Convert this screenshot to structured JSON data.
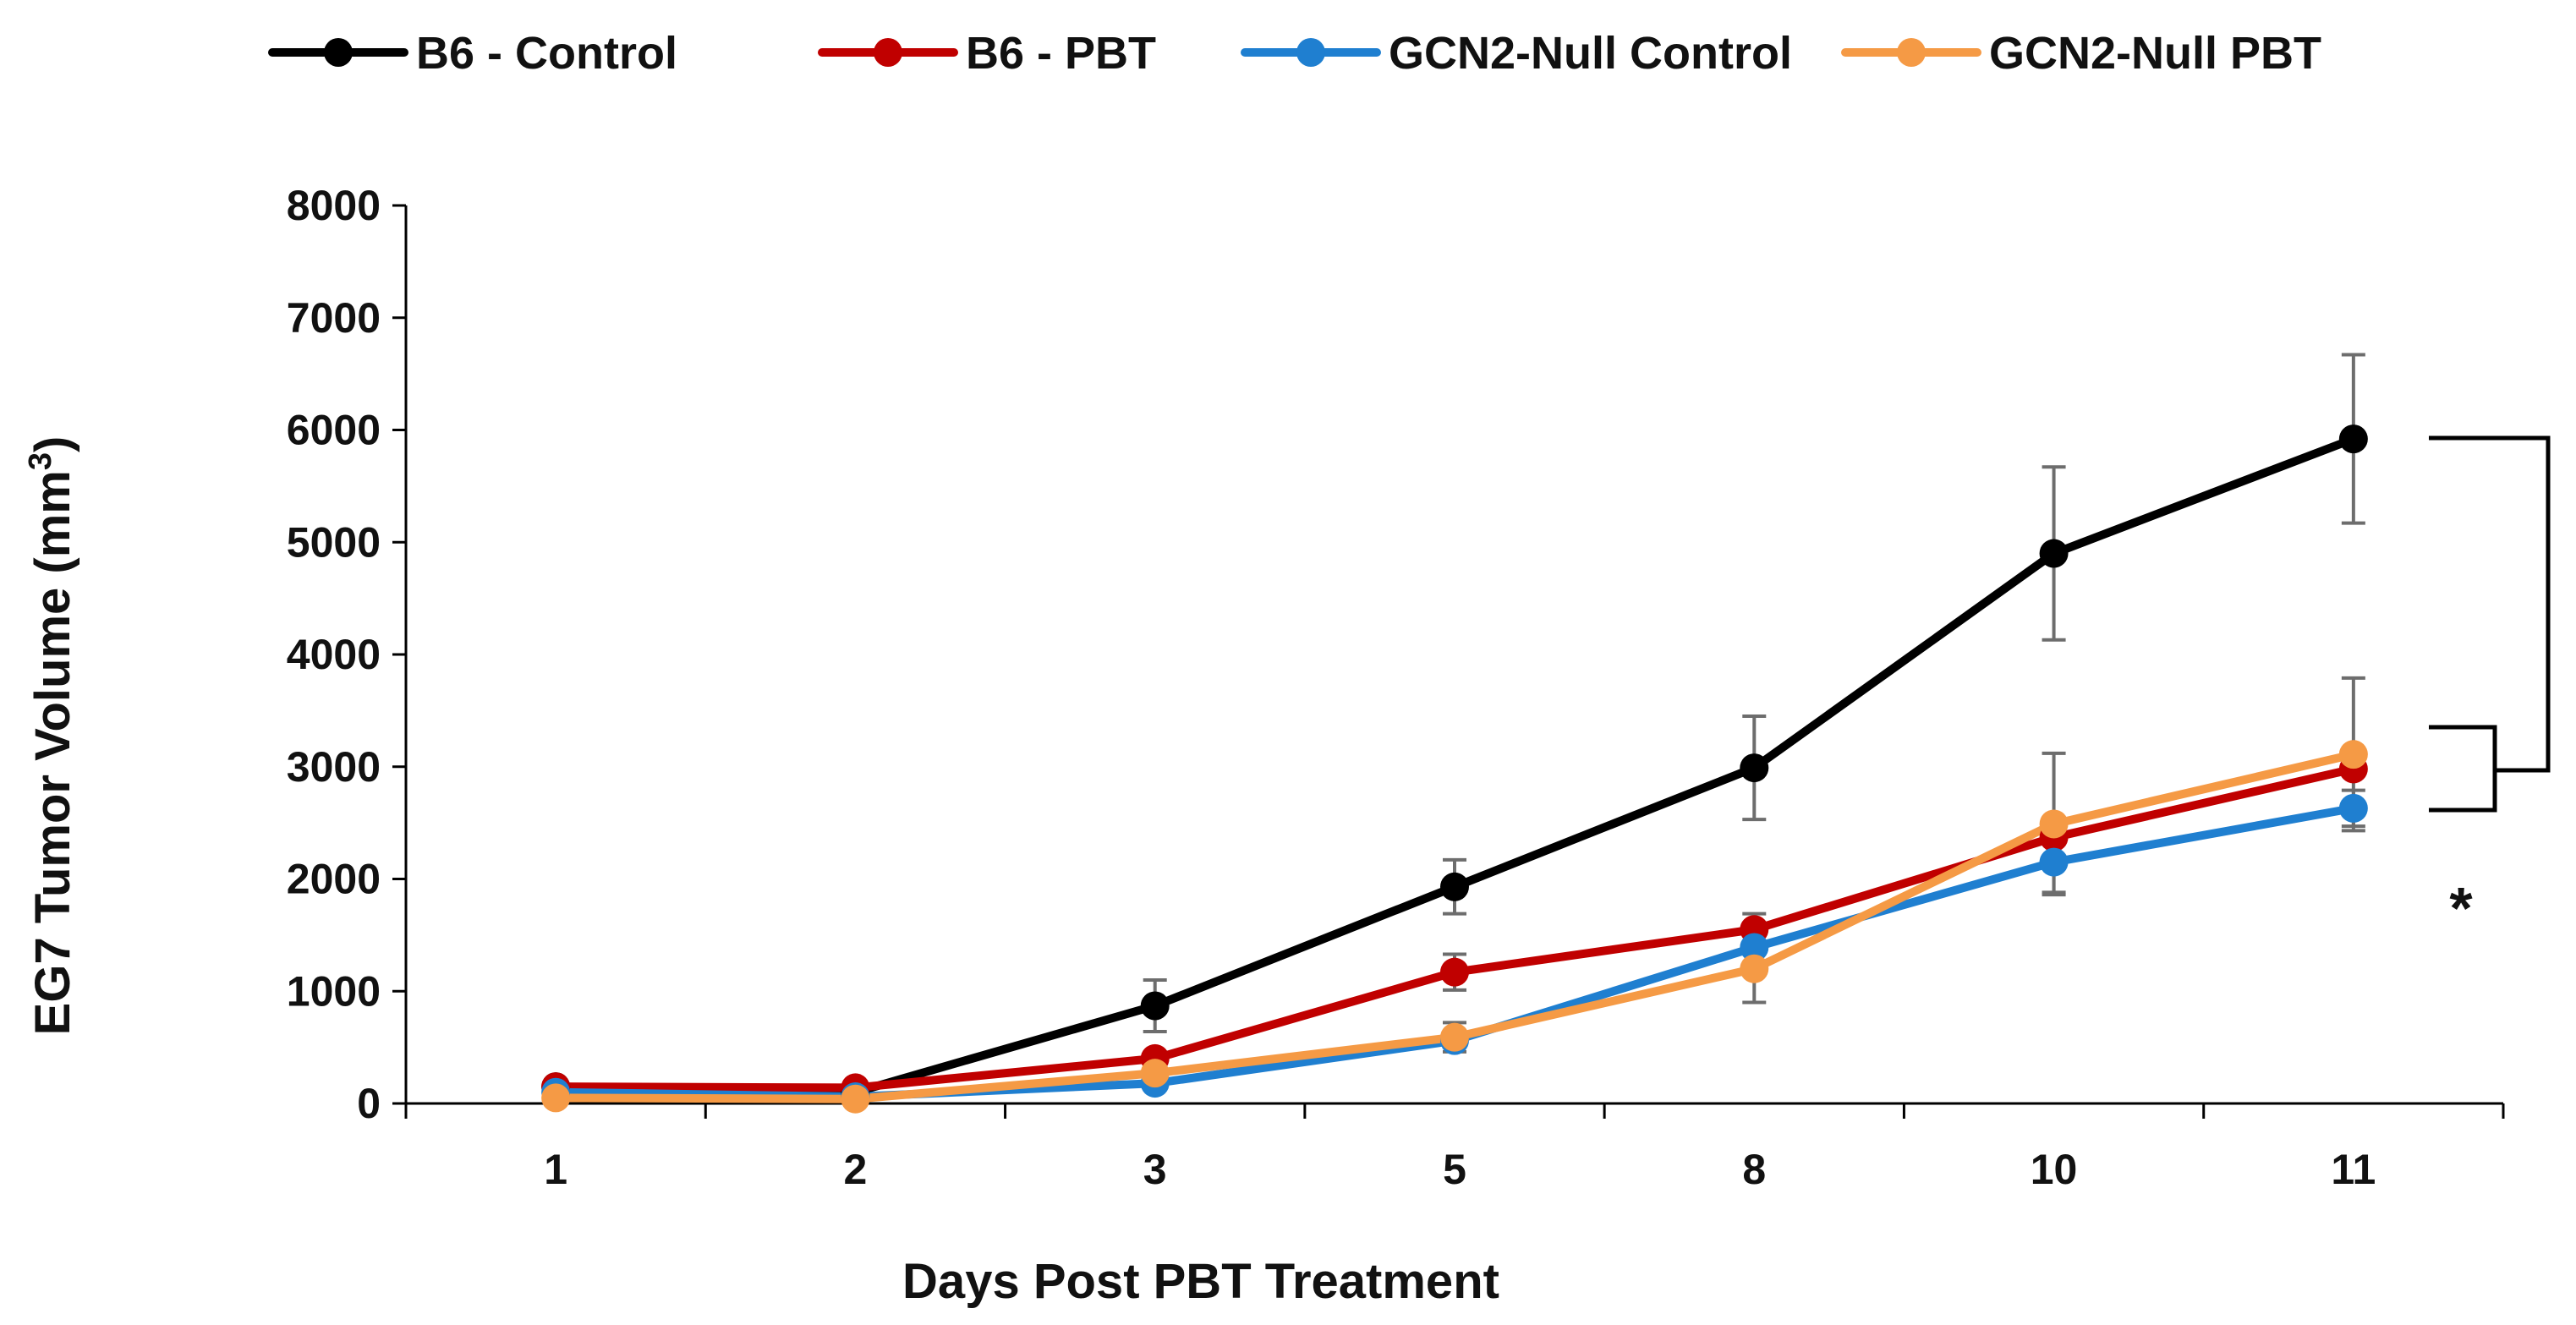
{
  "chart_data": {
    "type": "line",
    "title": "",
    "xlabel": "Days Post PBT Treatment",
    "ylabel_main": "EG7 Tumor Volume (mm",
    "ylabel_sup": "3",
    "ylabel_close": ")",
    "categories": [
      "1",
      "2",
      "3",
      "5",
      "8",
      "10",
      "11"
    ],
    "ylim": [
      0,
      8000
    ],
    "yticks": [
      0,
      1000,
      2000,
      3000,
      4000,
      5000,
      6000,
      7000,
      8000
    ],
    "grid": false,
    "legend_position": "top",
    "series": [
      {
        "name": "B6 - Control",
        "color": "#000000",
        "values": [
          150,
          100,
          870,
          1930,
          2990,
          4900,
          5920
        ],
        "errors": [
          0,
          0,
          230,
          240,
          460,
          770,
          750
        ]
      },
      {
        "name": "B6 - PBT",
        "color": "#c00000",
        "values": [
          150,
          140,
          400,
          1170,
          1550,
          2370,
          2980
        ],
        "errors": [
          0,
          0,
          0,
          160,
          140,
          0,
          0
        ]
      },
      {
        "name": "GCN2-Null Control",
        "color": "#1f7fd0",
        "values": [
          100,
          60,
          180,
          560,
          1390,
          2150,
          2630
        ],
        "errors": [
          0,
          0,
          0,
          0,
          0,
          270,
          160
        ]
      },
      {
        "name": "GCN2-Null PBT",
        "color": "#f59a45",
        "values": [
          50,
          40,
          270,
          590,
          1200,
          2490,
          3110
        ],
        "errors": [
          0,
          0,
          0,
          130,
          300,
          630,
          680
        ]
      }
    ],
    "annotation": "*"
  }
}
